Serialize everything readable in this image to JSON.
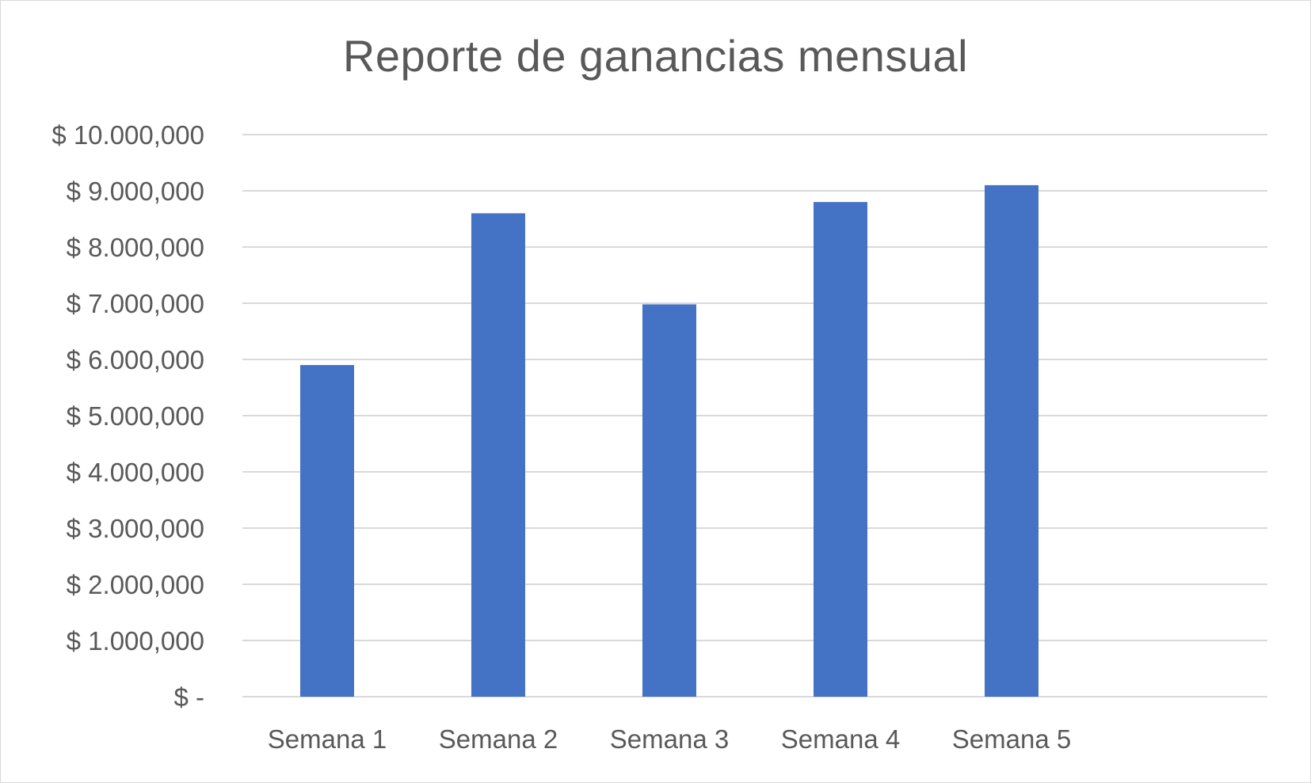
{
  "chart_data": {
    "type": "bar",
    "title": "Reporte de ganancias mensual",
    "xlabel": "",
    "ylabel": "",
    "categories": [
      "Semana 1",
      "Semana 2",
      "Semana 3",
      "Semana 4",
      "Semana 5"
    ],
    "values": [
      5900000,
      8600000,
      6980000,
      8800000,
      9100000
    ],
    "ylim": [
      0,
      10000000
    ],
    "y_ticks": [
      {
        "value": 0,
        "label": "$ -"
      },
      {
        "value": 1000000,
        "label": "$ 1.000,000"
      },
      {
        "value": 2000000,
        "label": "$ 2.000,000"
      },
      {
        "value": 3000000,
        "label": "$ 3.000,000"
      },
      {
        "value": 4000000,
        "label": "$ 4.000,000"
      },
      {
        "value": 5000000,
        "label": "$ 5.000,000"
      },
      {
        "value": 6000000,
        "label": "$ 6.000,000"
      },
      {
        "value": 7000000,
        "label": "$ 7.000,000"
      },
      {
        "value": 8000000,
        "label": "$ 8.000,000"
      },
      {
        "value": 9000000,
        "label": "$ 9.000,000"
      },
      {
        "value": 10000000,
        "label": "$ 10.000,000"
      }
    ],
    "grid": true,
    "legend": "none",
    "bar_color": "#4472c4"
  }
}
